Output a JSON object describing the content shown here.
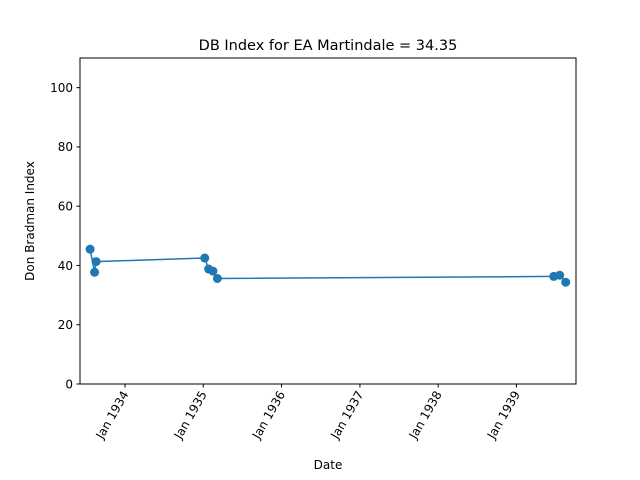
{
  "chart_data": {
    "type": "line",
    "title": "DB Index for EA Martindale = 34.35",
    "xlabel": "Date",
    "ylabel": "Don Bradman Index",
    "ylim": [
      0,
      110
    ],
    "xlim": [
      "1933-06-05",
      "1939-10-06"
    ],
    "yticks": [
      0,
      20,
      40,
      60,
      80,
      100
    ],
    "xticks": [
      {
        "date": "1934-01-01",
        "label": "Jan 1934"
      },
      {
        "date": "1935-01-01",
        "label": "Jan 1935"
      },
      {
        "date": "1936-01-01",
        "label": "Jan 1936"
      },
      {
        "date": "1937-01-01",
        "label": "Jan 1937"
      },
      {
        "date": "1938-01-01",
        "label": "Jan 1938"
      },
      {
        "date": "1939-01-01",
        "label": "Jan 1939"
      }
    ],
    "grid": false,
    "line_color": "#1f77b4",
    "series": [
      {
        "x": [
          "1933-07-22",
          "1933-08-12",
          "1933-08-19",
          "1935-01-08",
          "1935-01-26",
          "1935-02-15",
          "1935-03-08",
          "1939-06-24",
          "1939-07-22",
          "1939-08-19"
        ],
        "values": [
          45.5,
          37.7,
          41.3,
          42.5,
          38.8,
          38.1,
          35.6,
          36.3,
          36.7,
          34.35
        ]
      }
    ]
  }
}
